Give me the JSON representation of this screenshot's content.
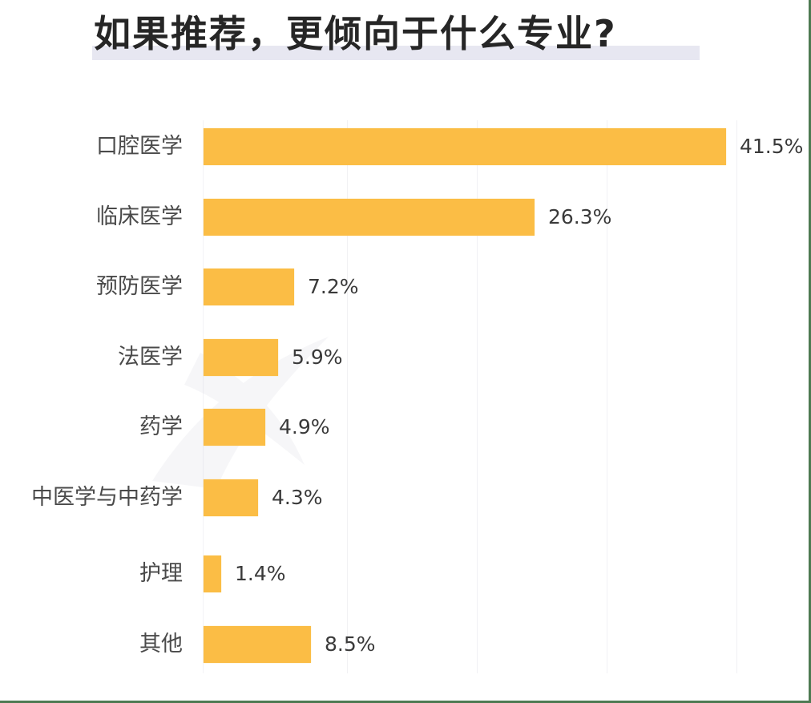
{
  "title": "如果推荐，更倾向于什么专业?",
  "colors": {
    "bar": "#fbbd45",
    "title_highlight": "#e7e7f1",
    "frame": "#4e7a52"
  },
  "chart_data": {
    "type": "bar",
    "orientation": "horizontal",
    "title": "如果推荐，更倾向于什么专业?",
    "xlabel": "",
    "ylabel": "",
    "categories": [
      "口腔医学",
      "临床医学",
      "预防医学",
      "法医学",
      "药学",
      "中医学与中药学",
      "护理",
      "其他"
    ],
    "values": [
      41.5,
      26.3,
      7.2,
      5.9,
      4.9,
      4.3,
      1.4,
      8.5
    ],
    "value_labels": [
      "41.5%",
      "26.3%",
      "7.2%",
      "5.9%",
      "4.9%",
      "4.3%",
      "1.4%",
      "8.5%"
    ],
    "unit": "%",
    "xlim": [
      0,
      45
    ],
    "grid": false,
    "legend": null
  },
  "rows": [
    {
      "label": "口腔医学",
      "value": 41.5,
      "value_label": "41.5%"
    },
    {
      "label": "临床医学",
      "value": 26.3,
      "value_label": "26.3%"
    },
    {
      "label": "预防医学",
      "value": 7.2,
      "value_label": "7.2%"
    },
    {
      "label": "法医学",
      "value": 5.9,
      "value_label": "5.9%"
    },
    {
      "label": "药学",
      "value": 4.9,
      "value_label": "4.9%"
    },
    {
      "label": "中医学与中药学",
      "value": 4.3,
      "value_label": "4.3%"
    },
    {
      "label": "护理",
      "value": 1.4,
      "value_label": "1.4%"
    },
    {
      "label": "其他",
      "value": 8.5,
      "value_label": "8.5%"
    }
  ]
}
